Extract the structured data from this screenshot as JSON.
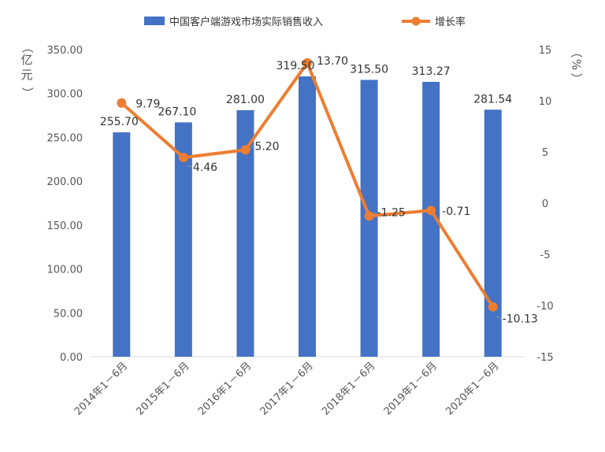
{
  "chart_data": {
    "type": "bar+line",
    "categories": [
      "2014年1－6月",
      "2015年1－6月",
      "2016年1－6月",
      "2017年1－6月",
      "2018年1－6月",
      "2019年1－6月",
      "2020年1－6月"
    ],
    "series": [
      {
        "name": "中国客户端游戏市场实际销售收入",
        "type": "bar",
        "axis": "left",
        "values": [
          255.7,
          267.1,
          281.0,
          319.5,
          315.5,
          313.27,
          281.54
        ],
        "labels": [
          "255.70",
          "267.10",
          "281.00",
          "319.50",
          "315.50",
          "313.27",
          "281.54"
        ],
        "color": "#4472C4"
      },
      {
        "name": "增长率",
        "type": "line",
        "axis": "right",
        "values": [
          9.79,
          4.46,
          5.2,
          13.7,
          -1.25,
          -0.71,
          -10.13
        ],
        "labels": [
          "9.79",
          "4.46",
          "5.20",
          "13.70",
          "-1.25",
          "-0.71",
          "-10.13"
        ],
        "color": "#ED7D31"
      }
    ],
    "y_left": {
      "label": "亿元",
      "ylim": [
        0,
        350
      ],
      "ticks": [
        "0.00",
        "50.00",
        "100.00",
        "150.00",
        "200.00",
        "250.00",
        "300.00",
        "350.00"
      ]
    },
    "y_right": {
      "label": "%",
      "ylim": [
        -15,
        15
      ],
      "ticks": [
        "-15",
        "-10",
        "-5",
        "0",
        "5",
        "10",
        "15"
      ]
    },
    "grid": false,
    "legend_position": "top"
  }
}
